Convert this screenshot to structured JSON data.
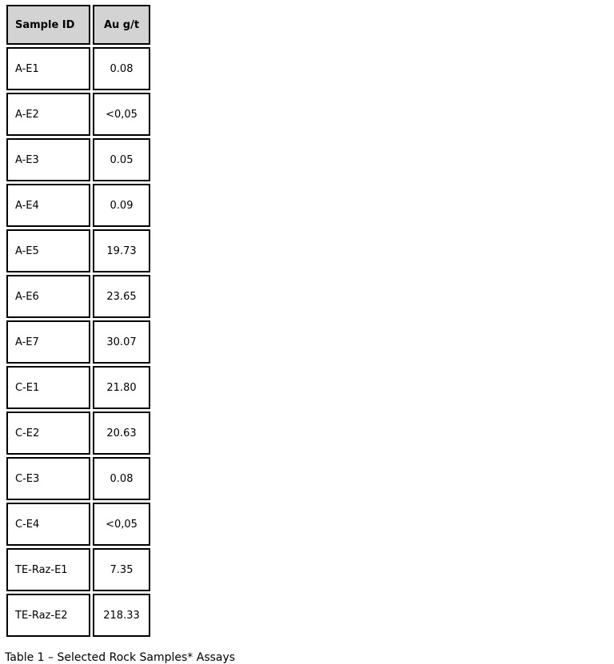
{
  "table": {
    "columns": [
      {
        "key": "sample",
        "label": "Sample ID"
      },
      {
        "key": "value",
        "label": "Au g/t"
      }
    ],
    "rows": [
      {
        "sample": "A-E1",
        "value": "0.08",
        "bold_sample": false,
        "bold_value": false
      },
      {
        "sample": "A-E2",
        "value": "<0,05",
        "bold_sample": false,
        "bold_value": false
      },
      {
        "sample": "A-E3",
        "value": "0.05",
        "bold_sample": false,
        "bold_value": false
      },
      {
        "sample": "A-E4",
        "value": "0.09",
        "bold_sample": false,
        "bold_value": false
      },
      {
        "sample": "A-E5",
        "value": "19.73",
        "bold_sample": false,
        "bold_value": true
      },
      {
        "sample": "A-E6",
        "value": "23.65",
        "bold_sample": false,
        "bold_value": true
      },
      {
        "sample": "A-E7",
        "value": "30.07",
        "bold_sample": false,
        "bold_value": true
      },
      {
        "sample": "C-E1",
        "value": "21.80",
        "bold_sample": false,
        "bold_value": true
      },
      {
        "sample": "C-E2",
        "value": "20.63",
        "bold_sample": false,
        "bold_value": true
      },
      {
        "sample": "C-E3",
        "value": "0.08",
        "bold_sample": false,
        "bold_value": false
      },
      {
        "sample": "C-E4",
        "value": "<0,05",
        "bold_sample": false,
        "bold_value": false
      },
      {
        "sample": "TE-Raz-E1",
        "value": "7.35",
        "bold_sample": false,
        "bold_value": true
      },
      {
        "sample": "TE-Raz-E2",
        "value": "218.33",
        "bold_sample": true,
        "bold_value": true
      }
    ],
    "header_bg": "#d3d3d3",
    "border_color": "#000000"
  },
  "caption": "Table 1 – Selected Rock Samples* Assays"
}
